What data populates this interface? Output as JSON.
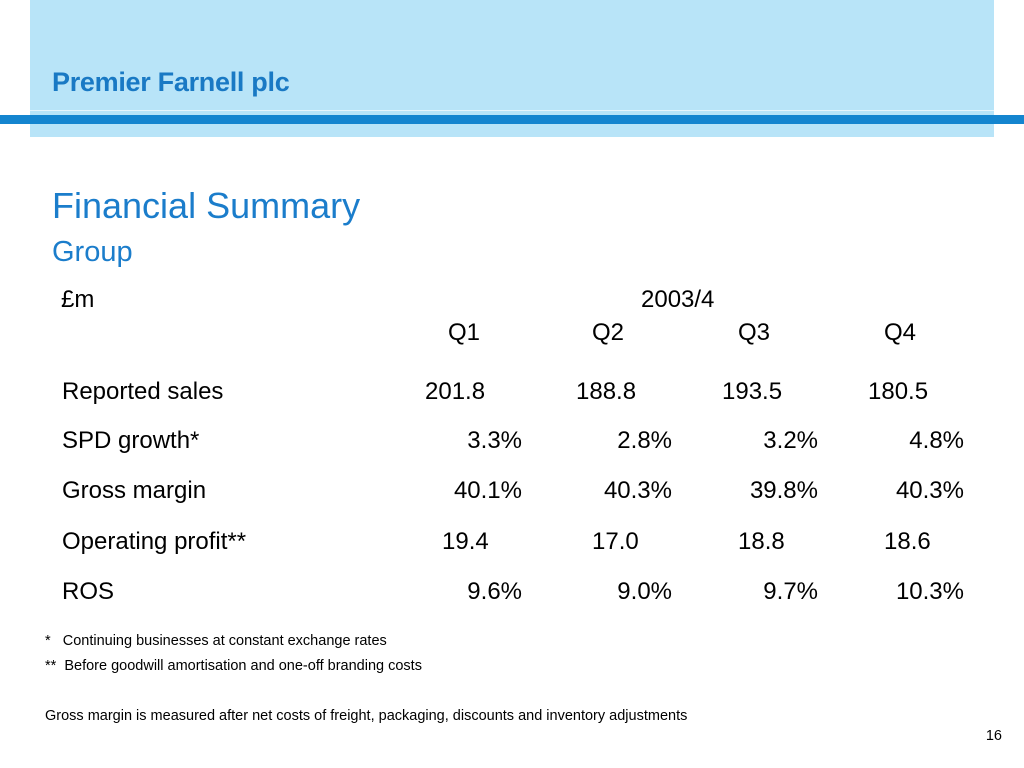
{
  "header": {
    "logo": "Premier Farnell plc"
  },
  "slide": {
    "title": "Financial Summary",
    "subtitle": "Group",
    "page_number": "16"
  },
  "table": {
    "unit": "£m",
    "year": "2003/4",
    "quarters": [
      "Q1",
      "Q2",
      "Q3",
      "Q4"
    ],
    "rows": [
      {
        "label": "Reported sales",
        "values": [
          "201.8",
          "188.8",
          "193.5",
          "180.5"
        ]
      },
      {
        "label": "SPD growth*",
        "values": [
          "3.3%",
          "2.8%",
          "3.2%",
          "4.8%"
        ]
      },
      {
        "label": "Gross margin",
        "values": [
          "40.1%",
          "40.3%",
          "39.8%",
          "40.3%"
        ]
      },
      {
        "label": "Operating profit**",
        "values": [
          "19.4",
          "17.0",
          "18.8",
          "18.6"
        ]
      },
      {
        "label": "ROS",
        "values": [
          "9.6%",
          "9.0%",
          "9.7%",
          "10.3%"
        ]
      }
    ]
  },
  "footnotes": {
    "note1": "*   Continuing businesses at constant exchange rates",
    "note2": "**  Before goodwill amortisation and one-off branding costs",
    "note3": "Gross margin is measured after net costs of freight, packaging, discounts and inventory adjustments"
  },
  "colors": {
    "header_band": "#b8e4f8",
    "header_stripe": "#1485cf",
    "title_blue": "#1b7dcb"
  }
}
